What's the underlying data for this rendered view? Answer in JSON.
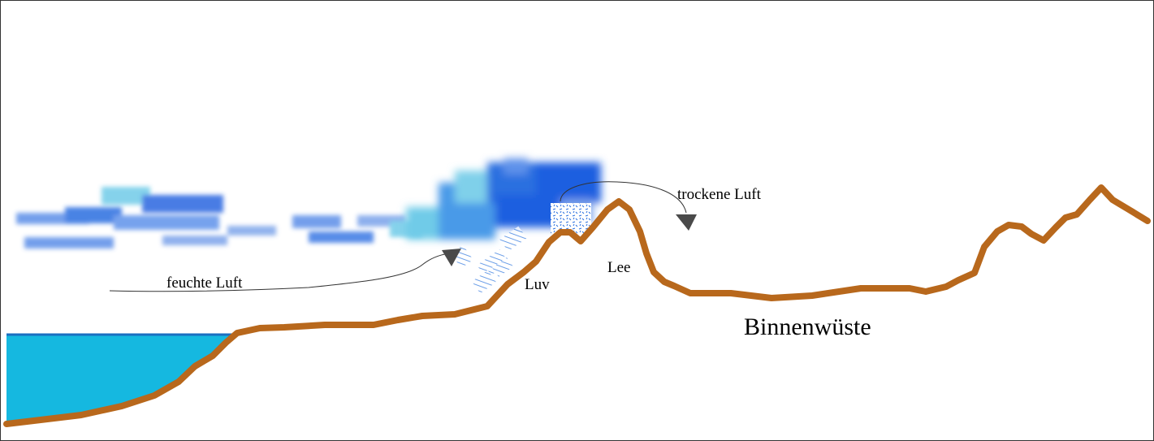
{
  "labels": {
    "moist_air": "feuchte Luft",
    "dry_air": "trockene Luft",
    "windward": "Luv",
    "leeward": "Lee",
    "desert": "Binnenwüste"
  },
  "colors": {
    "sea": "#15b8e0",
    "sea_edge": "#1a6fc0",
    "terrain": "#b8681c",
    "cloud_dark": "#1a5fe0",
    "cloud_light": "#5fc8e8",
    "rain": "#3a7ee0",
    "arrow": "#4a4a4a",
    "frame": "#333333"
  }
}
